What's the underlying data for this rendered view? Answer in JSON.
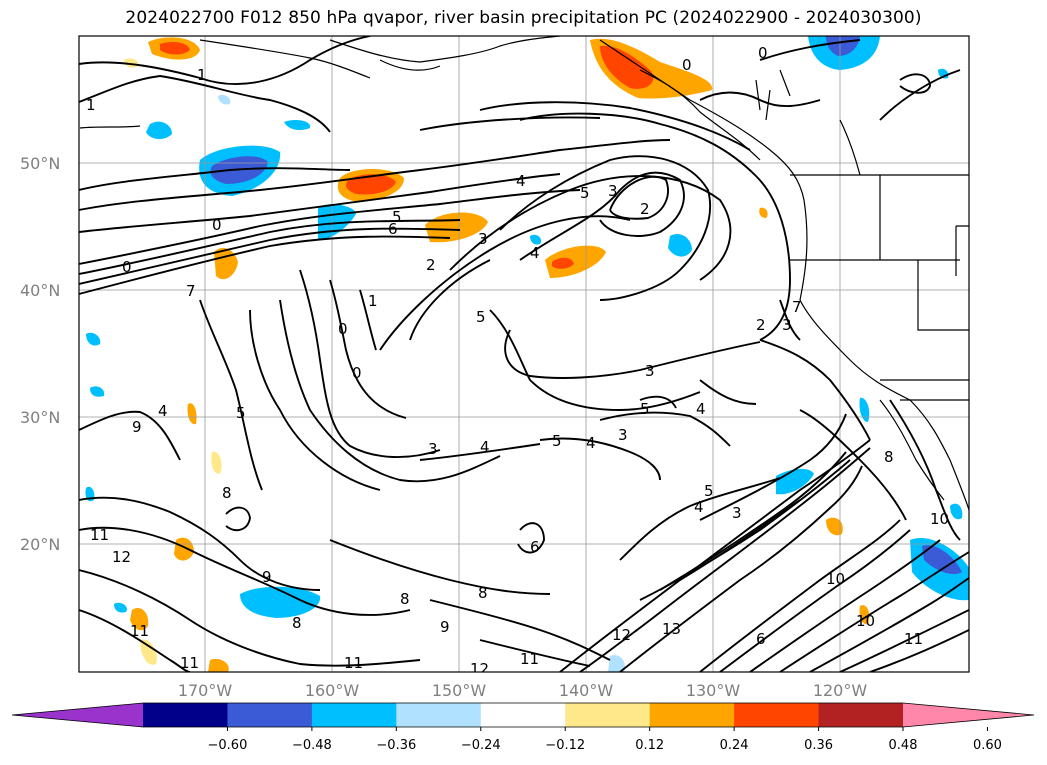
{
  "title": "2024022700 F012 850 hPa qvapor, river basin precipitation PC (2024022900 - 2024030300)",
  "lat_labels": [
    "50°N",
    "40°N",
    "30°N",
    "20°N"
  ],
  "lon_labels": [
    "170°W",
    "160°W",
    "150°W",
    "140°W",
    "130°W",
    "120°W"
  ],
  "colorbar": {
    "colors": [
      "#9933cc",
      "#00008b",
      "#3b5bd6",
      "#00bfff",
      "#b0e2ff",
      "#ffffff",
      "#ffe88a",
      "#ffa500",
      "#ff4500",
      "#b22222",
      "#ff88aa"
    ],
    "ticks": [
      "−0.60",
      "−0.48",
      "−0.36",
      "−0.24",
      "−0.12",
      "0.12",
      "0.24",
      "0.36",
      "0.48",
      "0.60"
    ]
  },
  "contour_labels": [
    "1",
    "1",
    "0",
    "0",
    "7",
    "4",
    "5",
    "5",
    "3",
    "2",
    "4",
    "5",
    "3",
    "3",
    "2",
    "4",
    "6",
    "5",
    "1",
    "0",
    "0",
    "5",
    "3",
    "4",
    "5",
    "4",
    "3",
    "5",
    "4",
    "3",
    "2",
    "7",
    "3",
    "4",
    "9",
    "8",
    "11",
    "12",
    "9",
    "11",
    "8",
    "8",
    "9",
    "8",
    "6",
    "11",
    "12",
    "11",
    "13",
    "12",
    "6",
    "10",
    "8",
    "10",
    "11",
    "10",
    "11",
    "0",
    "0"
  ]
}
